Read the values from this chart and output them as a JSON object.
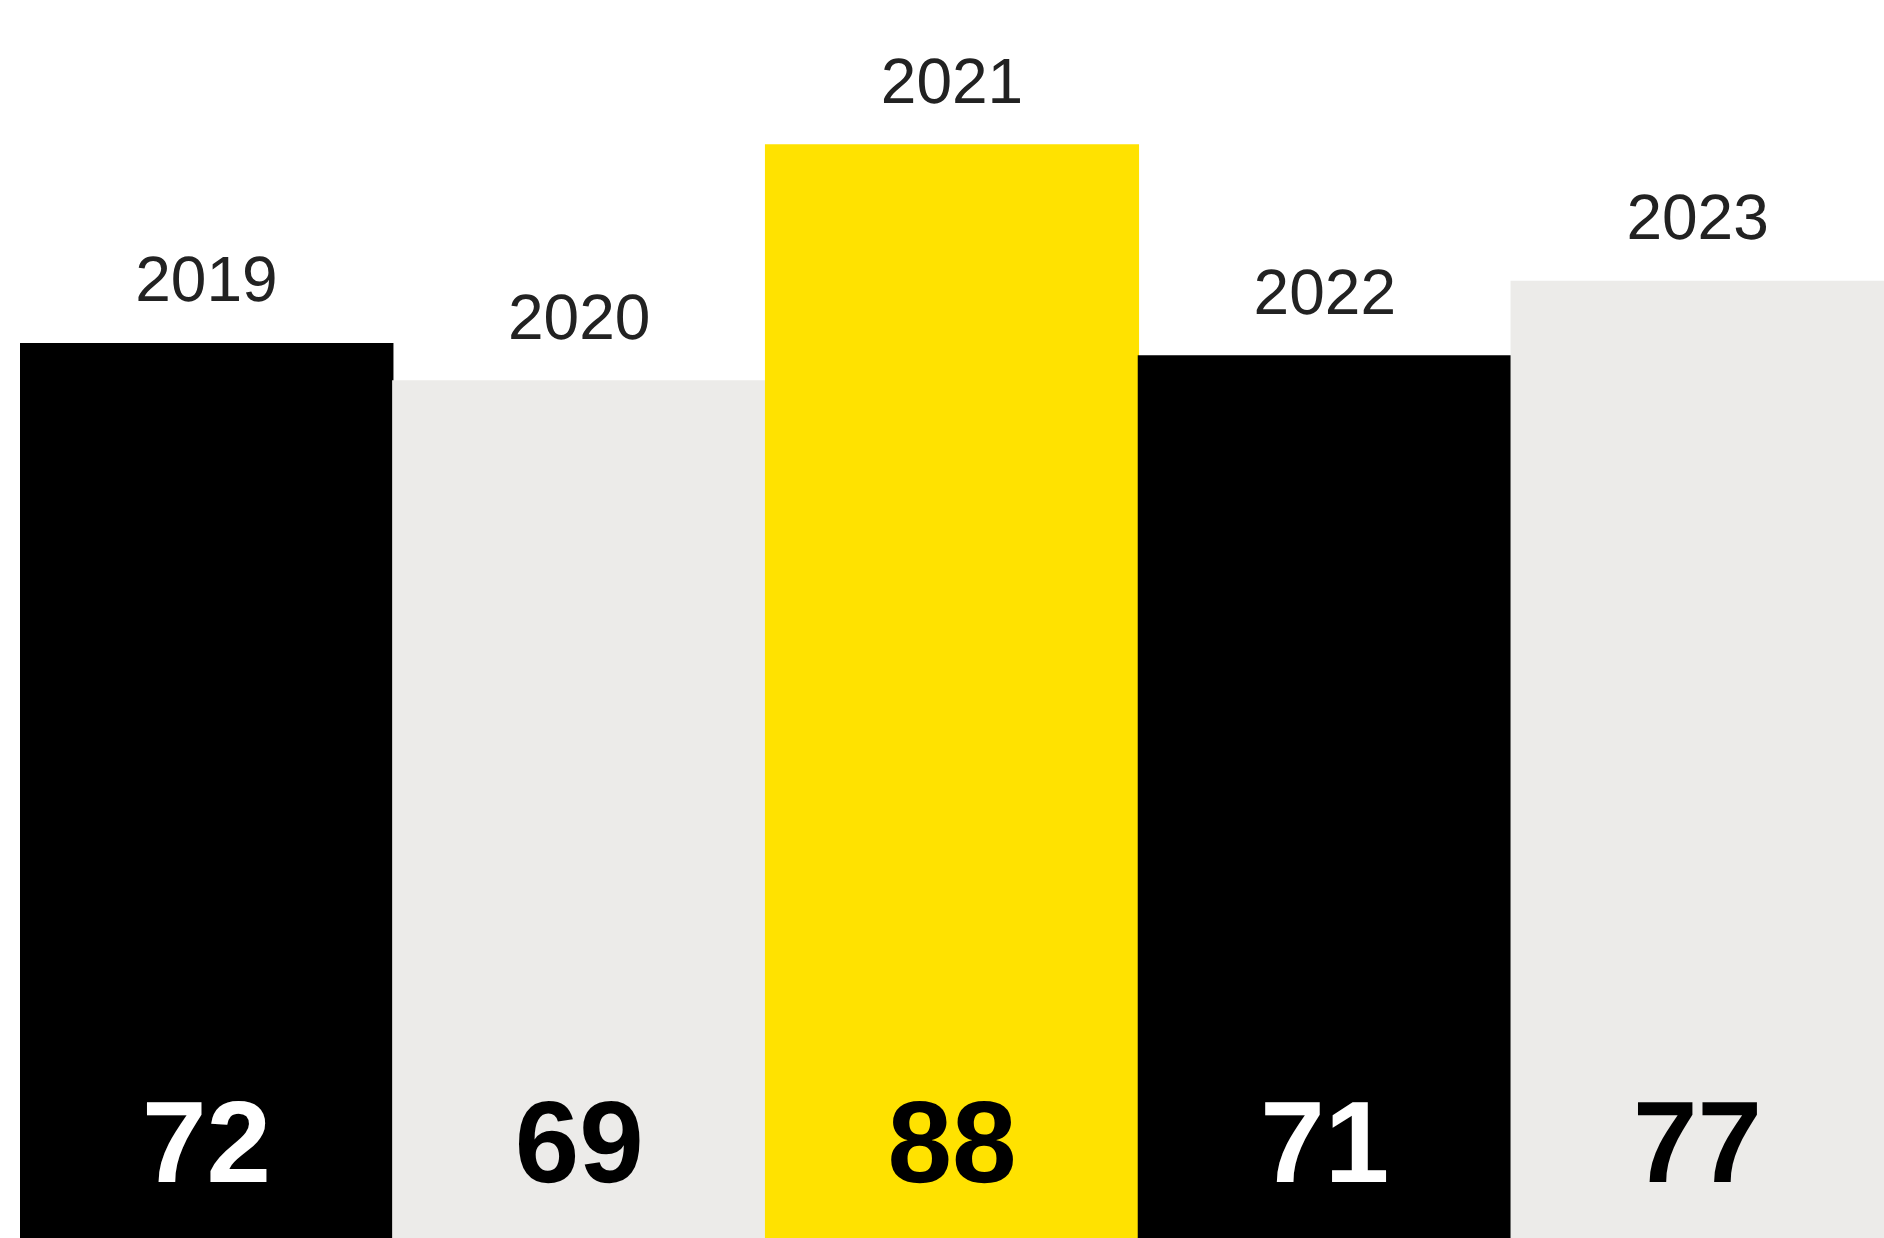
{
  "chart_data": {
    "type": "bar",
    "categories": [
      "2019",
      "2020",
      "2021",
      "2022",
      "2023"
    ],
    "values": [
      72,
      69,
      88,
      71,
      77
    ],
    "colors": [
      "#000000",
      "#ecebe9",
      "#ffe200",
      "#000000",
      "#ecebe9"
    ],
    "tick_labels": false,
    "legend": false,
    "data_labels": true
  }
}
